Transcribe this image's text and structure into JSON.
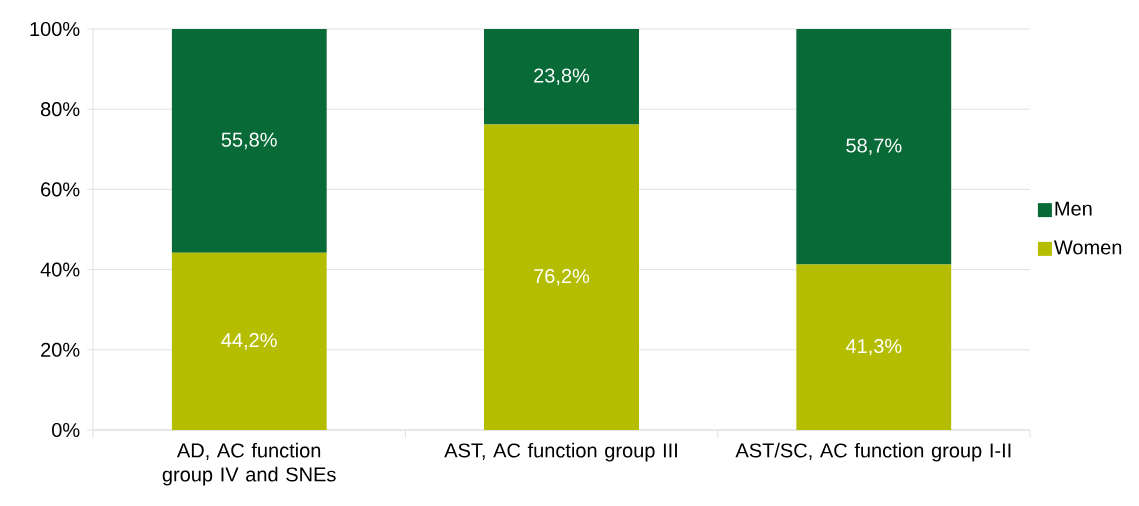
{
  "chart_data": {
    "type": "bar",
    "stacked": true,
    "categories": [
      "AD, AC function group IV and SNEs",
      "AST, AC function group III",
      "AST/SC, AC function group I-II"
    ],
    "series": [
      {
        "name": "Women",
        "color": "#b5bd00",
        "values": [
          44.2,
          76.2,
          41.3
        ],
        "value_labels": [
          "44,2%",
          "76,2%",
          "41,3%"
        ]
      },
      {
        "name": "Men",
        "color": "#086b37",
        "values": [
          55.8,
          23.8,
          58.7
        ],
        "value_labels": [
          "55,8%",
          "23,8%",
          "58,7%"
        ]
      }
    ],
    "ylim": [
      0,
      100
    ],
    "yticks": [
      {
        "value": 0,
        "label": "0%"
      },
      {
        "value": 20,
        "label": "20%"
      },
      {
        "value": 40,
        "label": "40%"
      },
      {
        "value": 60,
        "label": "60%"
      },
      {
        "value": 80,
        "label": "80%"
      },
      {
        "value": 100,
        "label": "100%"
      }
    ],
    "grid": "y",
    "legend": "right"
  }
}
